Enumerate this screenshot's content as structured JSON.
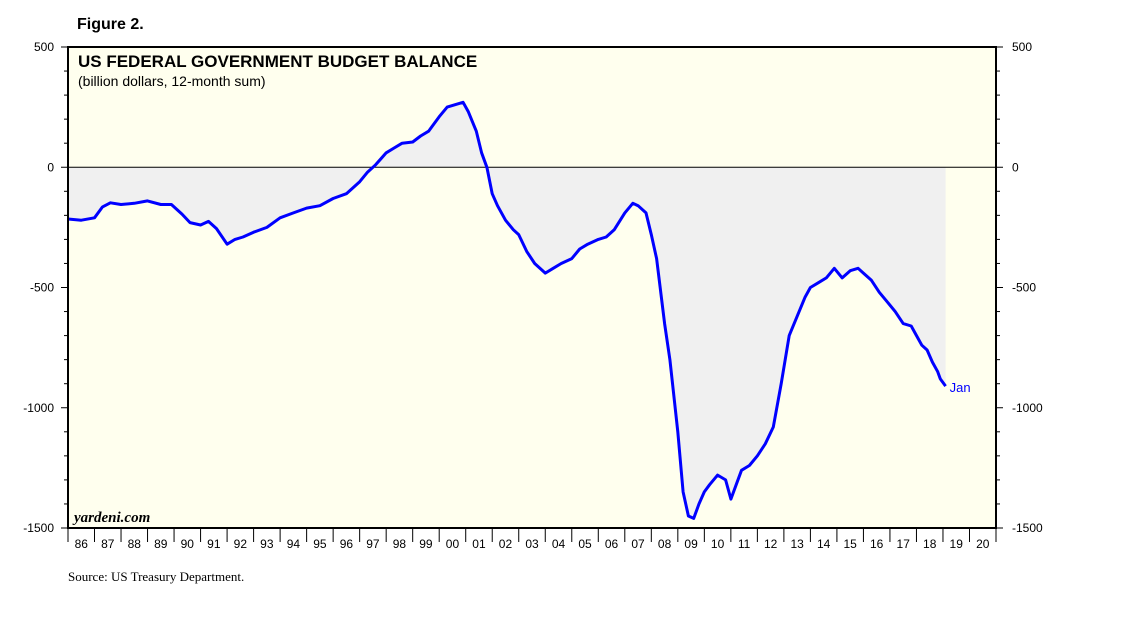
{
  "figure_label": "Figure 2.",
  "source": "Source: US Treasury Department.",
  "watermark": "yardeni.com",
  "colors": {
    "line": "#0000ff",
    "plot_bg": "#ffffee",
    "fill": "#f0f0f0",
    "zero_line": "#000000"
  },
  "chart_data": {
    "type": "area",
    "title": "US FEDERAL GOVERNMENT BUDGET BALANCE",
    "subtitle": "(billion dollars, 12-month sum)",
    "ylim": [
      -1500,
      500
    ],
    "y_ticks": [
      500,
      0,
      -500,
      -1000,
      -1500
    ],
    "y_tick_labels_left": [
      "500",
      "0",
      "-500",
      "-1000",
      "-1500"
    ],
    "y_tick_labels_right": [
      "500",
      "0",
      "-500",
      "-1000",
      "-1500"
    ],
    "xlim": [
      1986,
      2021
    ],
    "x_tick_labels": [
      "86",
      "87",
      "88",
      "89",
      "90",
      "91",
      "92",
      "93",
      "94",
      "95",
      "96",
      "97",
      "98",
      "99",
      "00",
      "01",
      "02",
      "03",
      "04",
      "05",
      "06",
      "07",
      "08",
      "09",
      "10",
      "11",
      "12",
      "13",
      "14",
      "15",
      "16",
      "17",
      "18",
      "19",
      "20"
    ],
    "end_label": "Jan",
    "grid": false,
    "series": [
      {
        "x": [
          1986.0,
          1986.5,
          1987.0,
          1987.3,
          1987.6,
          1988.0,
          1988.5,
          1989.0,
          1989.5,
          1989.9,
          1990.3,
          1990.6,
          1991.0,
          1991.3,
          1991.6,
          1992.0,
          1992.3,
          1992.6,
          1993.0,
          1993.5,
          1994.0,
          1994.5,
          1995.0,
          1995.5,
          1996.0,
          1996.5,
          1997.0,
          1997.3,
          1997.6,
          1998.0,
          1998.3,
          1998.6,
          1999.0,
          1999.3,
          1999.6,
          2000.0,
          2000.3,
          2000.6,
          2000.9,
          2001.1,
          2001.4,
          2001.6,
          2001.8,
          2002.0,
          2002.2,
          2002.5,
          2002.8,
          2003.0,
          2003.3,
          2003.6,
          2004.0,
          2004.3,
          2004.6,
          2005.0,
          2005.3,
          2005.6,
          2006.0,
          2006.3,
          2006.6,
          2007.0,
          2007.3,
          2007.5,
          2007.8,
          2008.0,
          2008.2,
          2008.5,
          2008.7,
          2009.0,
          2009.2,
          2009.4,
          2009.6,
          2009.8,
          2010.0,
          2010.2,
          2010.5,
          2010.8,
          2011.0,
          2011.2,
          2011.4,
          2011.7,
          2012.0,
          2012.3,
          2012.6,
          2012.9,
          2013.2,
          2013.5,
          2013.8,
          2014.0,
          2014.3,
          2014.6,
          2014.9,
          2015.2,
          2015.5,
          2015.8,
          2016.0,
          2016.3,
          2016.6,
          2016.9,
          2017.2,
          2017.5,
          2017.8,
          2018.0,
          2018.2,
          2018.4,
          2018.6,
          2018.8,
          2018.9,
          2019.1
        ],
        "values": [
          -215,
          -220,
          -210,
          -165,
          -148,
          -155,
          -150,
          -140,
          -155,
          -155,
          -195,
          -230,
          -240,
          -225,
          -255,
          -320,
          -300,
          -290,
          -270,
          -250,
          -210,
          -190,
          -170,
          -160,
          -130,
          -110,
          -60,
          -20,
          10,
          60,
          80,
          100,
          105,
          130,
          150,
          210,
          250,
          260,
          270,
          230,
          150,
          60,
          0,
          -110,
          -160,
          -220,
          -260,
          -280,
          -350,
          -400,
          -440,
          -420,
          -400,
          -380,
          -340,
          -320,
          -300,
          -290,
          -260,
          -190,
          -150,
          -160,
          -190,
          -280,
          -380,
          -650,
          -800,
          -1100,
          -1350,
          -1450,
          -1460,
          -1400,
          -1350,
          -1320,
          -1280,
          -1300,
          -1380,
          -1320,
          -1260,
          -1240,
          -1200,
          -1150,
          -1080,
          -900,
          -700,
          -620,
          -540,
          -500,
          -480,
          -460,
          -420,
          -460,
          -430,
          -420,
          -440,
          -470,
          -520,
          -560,
          -600,
          -650,
          -660,
          -700,
          -740,
          -760,
          -810,
          -850,
          -880,
          -910
        ]
      }
    ]
  }
}
